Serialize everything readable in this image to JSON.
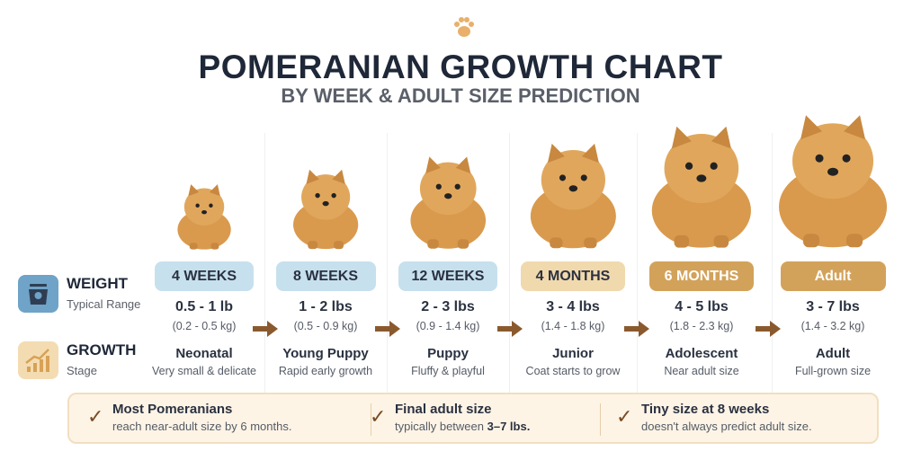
{
  "header": {
    "icon": "paw-icon",
    "title": "POMERANIAN GROWTH CHART",
    "subtitle": "BY WEEK & ADULT SIZE PREDICTION"
  },
  "rows": {
    "weight": {
      "icon": "scale-icon",
      "label": "WEIGHT",
      "sub": "Typical Range"
    },
    "growth": {
      "icon": "growth-chart-icon",
      "label": "GROWTH",
      "sub": "Stage"
    }
  },
  "stages": [
    {
      "age": "4 WEEKS",
      "lbs": "0.5 - 1 lb",
      "kg": "(0.2 - 0.5 kg)",
      "stage": "Neonatal",
      "desc": "Very small & delicate",
      "badge_color": "#c7e0ee",
      "text_color": "#2a3140"
    },
    {
      "age": "8 WEEKS",
      "lbs": "1 - 2 lbs",
      "kg": "(0.5 - 0.9 kg)",
      "stage": "Young Puppy",
      "desc": "Rapid early growth",
      "badge_color": "#c7e0ee",
      "text_color": "#2a3140"
    },
    {
      "age": "12 WEEKS",
      "lbs": "2 - 3 lbs",
      "kg": "(0.9 - 1.4 kg)",
      "stage": "Puppy",
      "desc": "Fluffy & playful",
      "badge_color": "#c7e0ee",
      "text_color": "#2a3140"
    },
    {
      "age": "4 MONTHS",
      "lbs": "3 - 4 lbs",
      "kg": "(1.4 - 1.8 kg)",
      "stage": "Junior",
      "desc": "Coat starts to grow",
      "badge_color": "#f1d9ae",
      "text_color": "#2a3140"
    },
    {
      "age": "6 MONTHS",
      "lbs": "4 - 5 lbs",
      "kg": "(1.8 - 2.3 kg)",
      "stage": "Adolescent",
      "desc": "Near adult size",
      "badge_color": "#d3a25a",
      "text_color": "#ffffff"
    },
    {
      "age": "Adult",
      "lbs": "3 - 7 lbs",
      "kg": "(1.4 - 3.2 kg)",
      "stage": "Adult",
      "desc": "Full-grown size",
      "badge_color": "#d3a25a",
      "text_color": "#ffffff"
    }
  ],
  "notes": [
    {
      "title": "Most Pomeranians",
      "body": "reach near-adult size by 6 months."
    },
    {
      "title": "Final adult size",
      "body_pre": "typically between ",
      "body_bold": "3–7 lbs."
    },
    {
      "title": "Tiny size at 8 weeks",
      "body": "doesn't always predict adult size."
    }
  ],
  "colors": {
    "arrow": "#8a5a2e",
    "dog": "#d99a4e",
    "check": "#7a4b22"
  }
}
